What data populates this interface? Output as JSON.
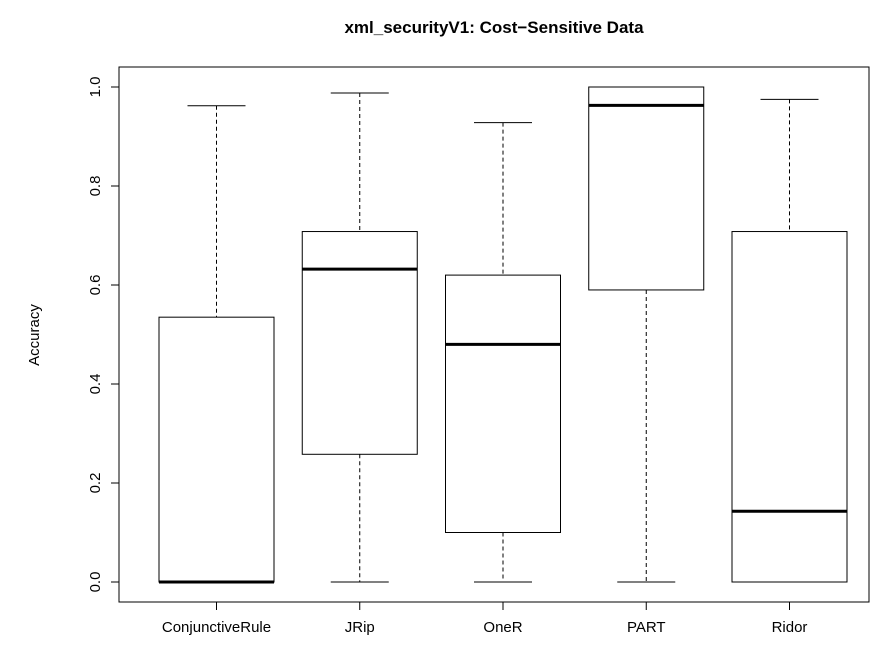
{
  "chart_data": {
    "type": "boxplot",
    "title": "xml_securityV1: Cost−Sensitive Data",
    "xlabel": "",
    "ylabel": "Accuracy",
    "ylim": [
      0.0,
      1.0
    ],
    "yticks": [
      "0.0",
      "0.2",
      "0.4",
      "0.6",
      "0.8",
      "1.0"
    ],
    "grid": false,
    "legend": "none",
    "categories": [
      "ConjunctiveRule",
      "JRip",
      "OneR",
      "PART",
      "Ridor"
    ],
    "boxes": [
      {
        "name": "ConjunctiveRule",
        "min": 0.0,
        "q1": 0.0,
        "median": 0.0,
        "q3": 0.535,
        "max": 0.962
      },
      {
        "name": "JRip",
        "min": 0.0,
        "q1": 0.258,
        "median": 0.632,
        "q3": 0.708,
        "max": 0.988
      },
      {
        "name": "OneR",
        "min": 0.0,
        "q1": 0.1,
        "median": 0.48,
        "q3": 0.62,
        "max": 0.928
      },
      {
        "name": "PART",
        "min": 0.0,
        "q1": 0.59,
        "median": 0.963,
        "q3": 1.0,
        "max": 1.0
      },
      {
        "name": "Ridor",
        "min": 0.0,
        "q1": 0.0,
        "median": 0.143,
        "q3": 0.708,
        "max": 0.975
      }
    ],
    "colors": {
      "box_fill": "#ffffff",
      "stroke": "#000000"
    }
  }
}
